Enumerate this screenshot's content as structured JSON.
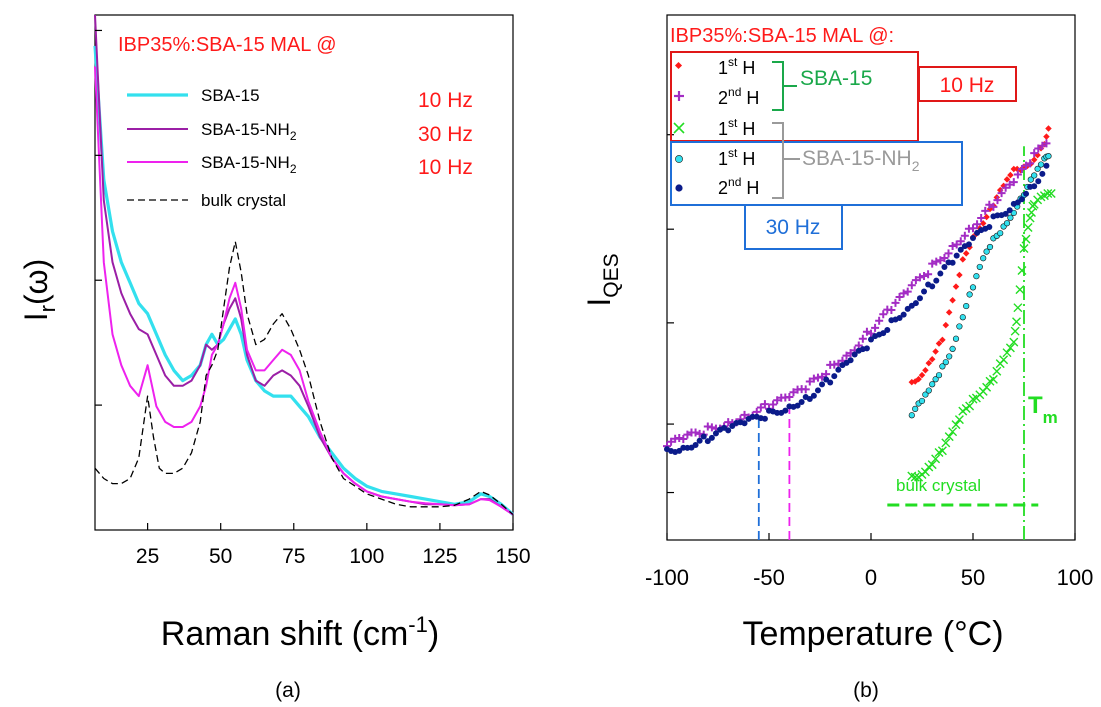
{
  "colors": {
    "red": "#ff1a1a",
    "cyan": "#33e0ee",
    "purple": "#9b1fa6",
    "magenta": "#ee22ee",
    "green": "#22dd22",
    "navy": "#0b1b8a",
    "darkgreen": "#1aa84a",
    "gray": "#9a9a9a",
    "blue": "#1f6fd8"
  },
  "panel_a": {
    "caption": "(a)",
    "header": "IBP35%:SBA-15 MAL @",
    "ylabel_main": "I",
    "ylabel_sub": "r",
    "ylabel_tail": "(ω)",
    "xlabel_main": "Raman shift (cm",
    "xlabel_sup": "-1",
    "xlabel_tail": ")",
    "legend": [
      {
        "label": "SBA-15",
        "freq": "10 Hz"
      },
      {
        "label": "SBA-15-NH",
        "sub": "2",
        "freq": "30 Hz"
      },
      {
        "label": "SBA-15-NH",
        "sub": "2",
        "freq": "10 Hz"
      },
      {
        "label": "bulk crystal",
        "freq": ""
      }
    ]
  },
  "panel_b": {
    "caption": "(b)",
    "header": "IBP35%:SBA-15 MAL @:",
    "ylabel_main": "I",
    "ylabel_sub": "QES",
    "xlabel": "Temperature (°C)",
    "legend": [
      {
        "marker": "diamond",
        "label": "1",
        "sup": "st",
        "tail": " H"
      },
      {
        "marker": "plus",
        "label": "2",
        "sup": "nd",
        "tail": " H"
      },
      {
        "marker": "cross",
        "label": "1",
        "sup": "st",
        "tail": " H"
      },
      {
        "marker": "circle-cyan",
        "label": "1",
        "sup": "st",
        "tail": " H"
      },
      {
        "marker": "circle-navy",
        "label": "2",
        "sup": "nd",
        "tail": " H"
      }
    ],
    "group_sba15": "SBA-15",
    "group_nh2_main": "SBA-15-NH",
    "group_nh2_sub": "2",
    "freq_10": "10 Hz",
    "freq_30": "30 Hz",
    "tm_main": "T",
    "tm_sub": "m",
    "bulk_label": "bulk crystal"
  },
  "chart_data": [
    {
      "type": "line",
      "xlim": [
        7,
        150
      ],
      "xticks": [
        25,
        50,
        75,
        100,
        125,
        150
      ],
      "ylim": [
        0,
        1
      ],
      "yticks_shown_without_labels": true,
      "series": [
        {
          "name": "SBA-15",
          "color": "cyan",
          "x": [
            7,
            10,
            13,
            16,
            19,
            22,
            25,
            28,
            31,
            34,
            37,
            40,
            43,
            45,
            47,
            49,
            51,
            53,
            55,
            57,
            59,
            62,
            65,
            68,
            71,
            74,
            77,
            80,
            84,
            88,
            92,
            96,
            100,
            105,
            110,
            115,
            120,
            125,
            130,
            135,
            139,
            142,
            146,
            150
          ],
          "y": [
            0.94,
            0.68,
            0.58,
            0.52,
            0.48,
            0.44,
            0.42,
            0.38,
            0.34,
            0.31,
            0.29,
            0.3,
            0.32,
            0.36,
            0.38,
            0.36,
            0.37,
            0.39,
            0.41,
            0.38,
            0.33,
            0.29,
            0.27,
            0.26,
            0.26,
            0.26,
            0.24,
            0.22,
            0.18,
            0.15,
            0.12,
            0.1,
            0.085,
            0.075,
            0.07,
            0.065,
            0.06,
            0.055,
            0.05,
            0.055,
            0.07,
            0.065,
            0.05,
            0.03
          ]
        },
        {
          "name": "SBA-15-NH2",
          "color": "purple",
          "x": [
            7,
            10,
            13,
            16,
            19,
            22,
            25,
            28,
            31,
            34,
            37,
            40,
            43,
            45,
            47,
            49,
            51,
            53,
            55,
            57,
            59,
            62,
            65,
            68,
            71,
            74,
            77,
            80,
            84,
            88,
            92,
            96,
            100,
            105,
            110,
            115,
            120,
            125,
            130,
            135,
            139,
            142,
            146,
            150
          ],
          "y": [
            1.0,
            0.64,
            0.52,
            0.46,
            0.42,
            0.39,
            0.38,
            0.34,
            0.3,
            0.28,
            0.28,
            0.29,
            0.32,
            0.36,
            0.35,
            0.36,
            0.4,
            0.43,
            0.45,
            0.41,
            0.34,
            0.29,
            0.28,
            0.3,
            0.31,
            0.3,
            0.28,
            0.24,
            0.18,
            0.14,
            0.11,
            0.09,
            0.075,
            0.065,
            0.06,
            0.055,
            0.05,
            0.05,
            0.048,
            0.05,
            0.06,
            0.06,
            0.045,
            0.03
          ]
        },
        {
          "name": "SBA-15-NH2",
          "color": "magenta",
          "x": [
            7,
            10,
            13,
            16,
            19,
            22,
            25,
            28,
            31,
            34,
            37,
            40,
            43,
            45,
            47,
            49,
            51,
            53,
            55,
            57,
            59,
            62,
            65,
            68,
            71,
            74,
            77,
            80,
            84,
            88,
            92,
            96,
            100,
            105,
            110,
            115,
            120,
            125,
            130,
            135,
            139,
            142,
            146,
            150
          ],
          "y": [
            0.9,
            0.52,
            0.38,
            0.32,
            0.28,
            0.26,
            0.32,
            0.24,
            0.21,
            0.2,
            0.2,
            0.21,
            0.24,
            0.28,
            0.34,
            0.36,
            0.4,
            0.45,
            0.48,
            0.43,
            0.35,
            0.31,
            0.31,
            0.33,
            0.35,
            0.34,
            0.31,
            0.25,
            0.19,
            0.14,
            0.11,
            0.09,
            0.075,
            0.065,
            0.06,
            0.055,
            0.052,
            0.05,
            0.048,
            0.05,
            0.06,
            0.058,
            0.045,
            0.03
          ]
        },
        {
          "name": "bulk crystal",
          "color": "black",
          "dashed": true,
          "x": [
            7,
            10,
            13,
            16,
            19,
            22,
            25,
            27,
            29,
            31,
            34,
            37,
            40,
            43,
            45,
            47,
            49,
            51,
            53,
            55,
            57,
            59,
            62,
            65,
            68,
            71,
            74,
            77,
            80,
            84,
            88,
            92,
            96,
            100,
            105,
            110,
            115,
            120,
            125,
            130,
            135,
            139,
            142,
            146,
            150
          ],
          "y": [
            0.12,
            0.1,
            0.09,
            0.09,
            0.1,
            0.14,
            0.26,
            0.18,
            0.12,
            0.11,
            0.11,
            0.12,
            0.15,
            0.21,
            0.3,
            0.32,
            0.35,
            0.43,
            0.51,
            0.56,
            0.5,
            0.42,
            0.36,
            0.37,
            0.4,
            0.42,
            0.39,
            0.35,
            0.3,
            0.21,
            0.14,
            0.1,
            0.085,
            0.07,
            0.06,
            0.05,
            0.045,
            0.045,
            0.045,
            0.048,
            0.06,
            0.075,
            0.068,
            0.05,
            0.03
          ]
        }
      ]
    },
    {
      "type": "scatter",
      "xlim": [
        -100,
        100
      ],
      "xticks": [
        -100,
        -50,
        0,
        50,
        100
      ],
      "ylim": [
        0,
        1
      ],
      "series": [
        {
          "name": "SBA-15 1st H (10 Hz)",
          "marker": "diamond",
          "color": "red",
          "x": [
            20,
            25,
            30,
            35,
            40,
            45,
            50,
            55,
            60,
            65,
            70,
            75,
            80,
            85,
            88
          ],
          "y": [
            0.3,
            0.32,
            0.35,
            0.38,
            0.45,
            0.53,
            0.58,
            0.61,
            0.64,
            0.67,
            0.7,
            0.71,
            0.73,
            0.76,
            0.79
          ]
        },
        {
          "name": "SBA-15 2nd H (10 Hz)",
          "marker": "plus",
          "color": "magenta",
          "x": [
            -100,
            -90,
            -80,
            -70,
            -60,
            -50,
            -40,
            -30,
            -20,
            -10,
            0,
            10,
            20,
            30,
            40,
            50,
            60,
            70,
            80,
            88
          ],
          "y": [
            0.18,
            0.195,
            0.21,
            0.225,
            0.24,
            0.255,
            0.27,
            0.295,
            0.33,
            0.36,
            0.4,
            0.44,
            0.48,
            0.52,
            0.56,
            0.6,
            0.64,
            0.68,
            0.73,
            0.77
          ]
        },
        {
          "name": "SBA-15 1st H (30 Hz)",
          "marker": "cross",
          "color": "green",
          "x": [
            20,
            25,
            30,
            35,
            40,
            45,
            50,
            55,
            60,
            65,
            70,
            72,
            75,
            78,
            80,
            85,
            90
          ],
          "y": [
            0.12,
            0.13,
            0.15,
            0.17,
            0.2,
            0.24,
            0.27,
            0.29,
            0.31,
            0.34,
            0.37,
            0.44,
            0.56,
            0.62,
            0.64,
            0.65,
            0.66
          ]
        },
        {
          "name": "SBA-15-NH2 1st H (30 Hz)",
          "marker": "circle-cyan",
          "color": "cyan",
          "x": [
            20,
            25,
            30,
            35,
            40,
            45,
            50,
            55,
            60,
            65,
            70,
            75,
            80,
            85,
            88
          ],
          "y": [
            0.24,
            0.26,
            0.29,
            0.33,
            0.37,
            0.43,
            0.48,
            0.53,
            0.57,
            0.6,
            0.63,
            0.66,
            0.69,
            0.72,
            0.74
          ]
        },
        {
          "name": "SBA-15-NH2 2nd H (30 Hz)",
          "marker": "circle-navy",
          "color": "navy",
          "x": [
            -100,
            -90,
            -80,
            -70,
            -60,
            -50,
            -40,
            -30,
            -20,
            -10,
            0,
            10,
            20,
            30,
            40,
            50,
            60,
            70,
            80,
            88
          ],
          "y": [
            0.17,
            0.18,
            0.195,
            0.21,
            0.225,
            0.24,
            0.255,
            0.275,
            0.305,
            0.34,
            0.375,
            0.415,
            0.45,
            0.49,
            0.53,
            0.57,
            0.61,
            0.64,
            0.68,
            0.72
          ]
        }
      ],
      "reference_lines": [
        {
          "x": -55,
          "color": "blue",
          "dashed": true,
          "from_y": 0,
          "to_y": 0.235
        },
        {
          "x": -40,
          "color": "magenta",
          "dashed": true,
          "from_y": 0,
          "to_y": 0.27
        },
        {
          "x": 75,
          "color": "green",
          "dashed": "dashdot",
          "from_y": 0,
          "to_y": 0.75
        }
      ],
      "bulk_crystal_range": [
        8,
        82
      ],
      "tm": 75
    }
  ]
}
